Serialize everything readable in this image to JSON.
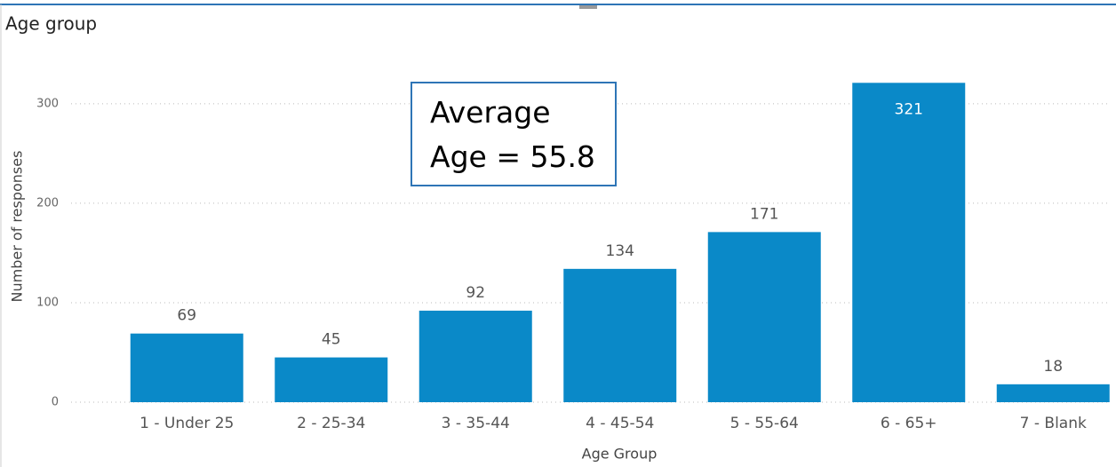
{
  "chart_data": {
    "type": "bar",
    "title": "Age group",
    "categories": [
      "1 - Under 25",
      "2 - 25-34",
      "3 - 35-44",
      "4 - 45-54",
      "5 - 55-64",
      "6 - 65+",
      "7 - Blank"
    ],
    "values": [
      69,
      45,
      92,
      134,
      171,
      321,
      18
    ],
    "color": "#0a89c8",
    "ylim": [
      0,
      340
    ],
    "yticks": [
      0,
      100,
      200,
      300
    ],
    "grid": true,
    "x_label": "Age Group",
    "y_label": "Number of responses",
    "annotation": "Average Age = 55.8"
  }
}
